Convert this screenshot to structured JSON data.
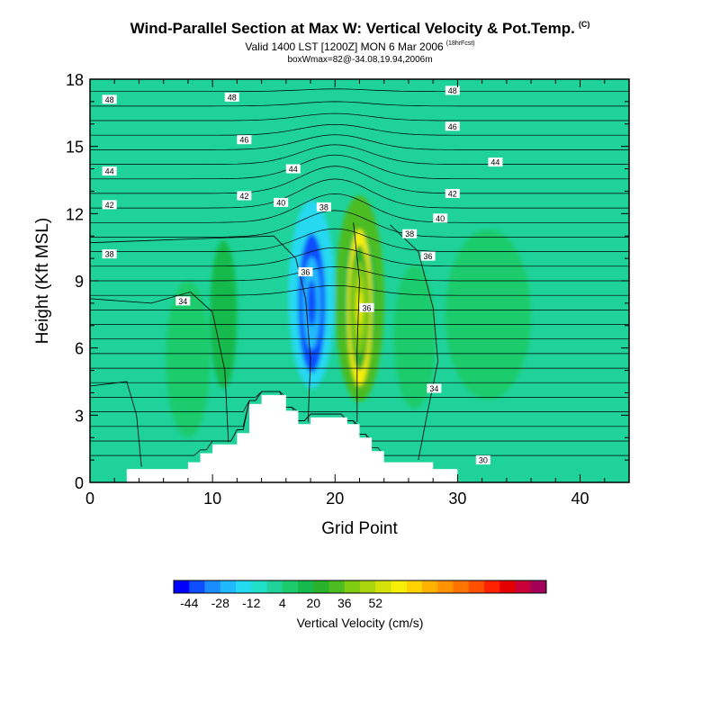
{
  "header": {
    "title": "Wind-Parallel Section at Max W: Vertical Velocity & Pot.Temp.",
    "copyright": "(C)",
    "valid": "Valid 1400 LST [1200Z] MON 6 Mar 2006",
    "run": "(18hrFcst)",
    "box_info": "boxWmax=82@-34.08,19.94,2006m"
  },
  "chart_data": {
    "type": "heatmap",
    "title": "Wind-Parallel Section at Max W: Vertical Velocity & Pot.Temp.",
    "xlabel": "Grid Point",
    "ylabel": "Height (Kft MSL)",
    "xlim": [
      0,
      44
    ],
    "ylim": [
      0,
      18
    ],
    "x_ticks": [
      0,
      10,
      20,
      30,
      40
    ],
    "y_ticks": [
      0,
      3,
      6,
      9,
      12,
      15,
      18
    ],
    "background_w": 0,
    "terrain": [
      {
        "x": 0,
        "h": 0
      },
      {
        "x": 3,
        "h": 0
      },
      {
        "x": 3,
        "h": 0.6
      },
      {
        "x": 8,
        "h": 0.6
      },
      {
        "x": 8,
        "h": 0.9
      },
      {
        "x": 9,
        "h": 0.9
      },
      {
        "x": 9,
        "h": 1.3
      },
      {
        "x": 10,
        "h": 1.3
      },
      {
        "x": 10,
        "h": 1.7
      },
      {
        "x": 12,
        "h": 1.7
      },
      {
        "x": 12,
        "h": 2.2
      },
      {
        "x": 13,
        "h": 2.2
      },
      {
        "x": 13,
        "h": 3.5
      },
      {
        "x": 14,
        "h": 3.5
      },
      {
        "x": 14,
        "h": 3.9
      },
      {
        "x": 16,
        "h": 3.9
      },
      {
        "x": 16,
        "h": 3.2
      },
      {
        "x": 17,
        "h": 3.2
      },
      {
        "x": 17,
        "h": 2.6
      },
      {
        "x": 18,
        "h": 2.6
      },
      {
        "x": 18,
        "h": 2.9
      },
      {
        "x": 21,
        "h": 2.9
      },
      {
        "x": 21,
        "h": 2.6
      },
      {
        "x": 22,
        "h": 2.6
      },
      {
        "x": 22,
        "h": 2.0
      },
      {
        "x": 23,
        "h": 2.0
      },
      {
        "x": 23,
        "h": 1.4
      },
      {
        "x": 24,
        "h": 1.4
      },
      {
        "x": 24,
        "h": 0.9
      },
      {
        "x": 28,
        "h": 0.9
      },
      {
        "x": 28,
        "h": 0.6
      },
      {
        "x": 30,
        "h": 0.6
      },
      {
        "x": 30,
        "h": 0
      },
      {
        "x": 44,
        "h": 0
      }
    ],
    "w_features": [
      {
        "x": 18.1,
        "y": 8.0,
        "rx": 1.1,
        "ry": 3.1,
        "value": -40
      },
      {
        "x": 18.1,
        "y": 8.4,
        "rx": 1.9,
        "ry": 4.2,
        "value": -14
      },
      {
        "x": 22.0,
        "y": 7.8,
        "rx": 1.0,
        "ry": 3.5,
        "value": 60
      },
      {
        "x": 22.0,
        "y": 8.2,
        "rx": 2.0,
        "ry": 4.6,
        "value": 28
      },
      {
        "x": 10.9,
        "y": 7.5,
        "rx": 1.1,
        "ry": 3.3,
        "value": 18
      },
      {
        "x": 26.5,
        "y": 6.5,
        "rx": 1.7,
        "ry": 3.2,
        "value": 8
      },
      {
        "x": 32.5,
        "y": 7.5,
        "rx": 3.5,
        "ry": 3.8,
        "value": 5
      },
      {
        "x": 8.0,
        "y": 5.5,
        "rx": 1.8,
        "ry": 3.5,
        "value": 5
      }
    ],
    "theta_contour_labels": [
      {
        "text": "48",
        "x": 1,
        "y": 17.1
      },
      {
        "text": "48",
        "x": 11,
        "y": 17.2
      },
      {
        "text": "48",
        "x": 29,
        "y": 17.5
      },
      {
        "text": "46",
        "x": 12,
        "y": 15.3
      },
      {
        "text": "46",
        "x": 29,
        "y": 15.9
      },
      {
        "text": "44",
        "x": 1,
        "y": 13.9
      },
      {
        "text": "44",
        "x": 16,
        "y": 14.0
      },
      {
        "text": "44",
        "x": 32.5,
        "y": 14.3
      },
      {
        "text": "42",
        "x": 1,
        "y": 12.4
      },
      {
        "text": "42",
        "x": 12,
        "y": 12.8
      },
      {
        "text": "42",
        "x": 29,
        "y": 12.9
      },
      {
        "text": "40",
        "x": 15,
        "y": 12.5
      },
      {
        "text": "40",
        "x": 28,
        "y": 11.8
      },
      {
        "text": "38",
        "x": 18.5,
        "y": 12.3
      },
      {
        "text": "38",
        "x": 25.5,
        "y": 11.1
      },
      {
        "text": "38",
        "x": 1,
        "y": 10.2
      },
      {
        "text": "36",
        "x": 17,
        "y": 9.4
      },
      {
        "text": "36",
        "x": 27,
        "y": 10.1
      },
      {
        "text": "36",
        "x": 22,
        "y": 7.8
      },
      {
        "text": "34",
        "x": 7,
        "y": 8.1
      },
      {
        "text": "34",
        "x": 27.5,
        "y": 4.2
      },
      {
        "text": "30",
        "x": 31.5,
        "y": 1.0
      }
    ],
    "colorbar": {
      "label": "Vertical Velocity (cm/s)",
      "tick_labels": [
        "-44",
        "-28",
        "-12",
        "4",
        "20",
        "36",
        "52"
      ],
      "colors": [
        "#0000ff",
        "#0d4dff",
        "#1a8cff",
        "#20b9ff",
        "#25d9f0",
        "#20e0c8",
        "#1fd29a",
        "#1ccb6c",
        "#15b94c",
        "#2ab12c",
        "#4cbc20",
        "#7fcb12",
        "#abd60d",
        "#d4e20a",
        "#f7ef07",
        "#ffd200",
        "#ffb200",
        "#ff9200",
        "#ff7300",
        "#ff5000",
        "#ff2200",
        "#e40000",
        "#c8003a",
        "#a3005a"
      ]
    }
  }
}
